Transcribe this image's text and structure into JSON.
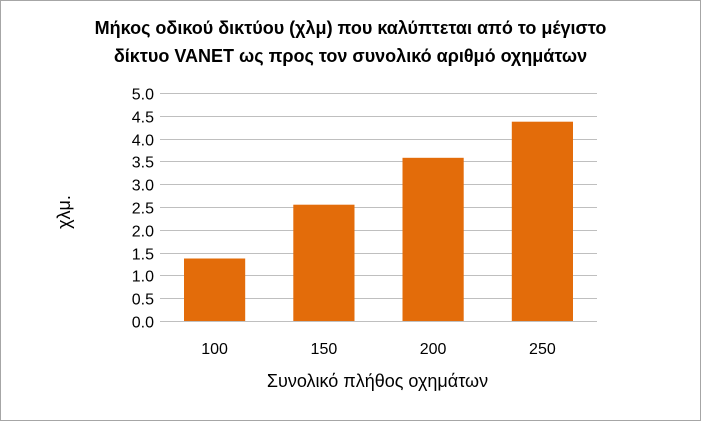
{
  "chart_data": {
    "type": "bar",
    "title_lines": [
      "Μήκος οδικού δικτύου (χλμ) που καλύπτεται από το μέγιστο",
      "δίκτυο VANET ως προς τον συνολικό αριθμό οχημάτων"
    ],
    "xlabel": "Συνολικό πλήθος οχημάτων",
    "ylabel": "χλμ.",
    "categories": [
      "100",
      "150",
      "200",
      "250"
    ],
    "values": [
      1.37,
      2.55,
      3.58,
      4.37
    ],
    "ylim": [
      0,
      5
    ],
    "ytick_step": 0.5,
    "ytick_labels": [
      "0.0",
      "0.5",
      "1.0",
      "1.5",
      "2.0",
      "2.5",
      "3.0",
      "3.5",
      "4.0",
      "4.5",
      "5.0"
    ],
    "grid": true,
    "legend": "none",
    "bar_color": "#e36c0a",
    "grid_color": "#bfbfbf"
  }
}
